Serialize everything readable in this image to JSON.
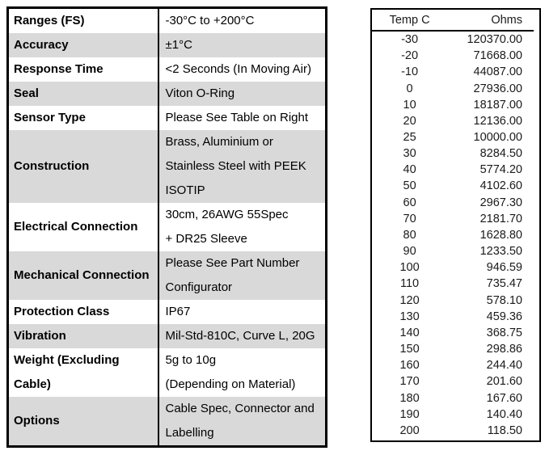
{
  "spec_table": {
    "rows": [
      {
        "label": "Ranges (FS)",
        "value": "-30°C to +200°C",
        "shaded": false
      },
      {
        "label": "Accuracy",
        "value": "±1°C",
        "shaded": true
      },
      {
        "label": "Response Time",
        "value": "<2 Seconds (In Moving Air)",
        "shaded": false
      },
      {
        "label": "Seal",
        "value": "Viton O-Ring",
        "shaded": true
      },
      {
        "label": "Sensor Type",
        "value": "Please See Table on Right",
        "shaded": false
      },
      {
        "label": "Construction",
        "value": "Brass, Aluminium or\nStainless Steel with PEEK\nISOTIP",
        "shaded": true
      },
      {
        "label": "Electrical Connection",
        "value": "30cm, 26AWG 55Spec\n+ DR25 Sleeve",
        "shaded": false
      },
      {
        "label": "Mechanical Connection",
        "value": "Please See Part Number\nConfigurator",
        "shaded": true
      },
      {
        "label": "Protection Class",
        "value": "IP67",
        "shaded": false
      },
      {
        "label": "Vibration",
        "value": "Mil-Std-810C, Curve L, 20G",
        "shaded": true
      },
      {
        "label": "Weight (Excluding Cable)",
        "value": "5g to 10g\n(Depending on Material)",
        "shaded": false
      },
      {
        "label": "Options",
        "value": "Cable Spec, Connector and\nLabelling",
        "shaded": true
      }
    ]
  },
  "resistance_table": {
    "headers": {
      "temp": "Temp C",
      "ohms": "Ohms"
    },
    "rows": [
      {
        "temp": "-30",
        "ohms": "120370.00"
      },
      {
        "temp": "-20",
        "ohms": "71668.00"
      },
      {
        "temp": "-10",
        "ohms": "44087.00"
      },
      {
        "temp": "0",
        "ohms": "27936.00"
      },
      {
        "temp": "10",
        "ohms": "18187.00"
      },
      {
        "temp": "20",
        "ohms": "12136.00"
      },
      {
        "temp": "25",
        "ohms": "10000.00"
      },
      {
        "temp": "30",
        "ohms": "8284.50"
      },
      {
        "temp": "40",
        "ohms": "5774.20"
      },
      {
        "temp": "50",
        "ohms": "4102.60"
      },
      {
        "temp": "60",
        "ohms": "2967.30"
      },
      {
        "temp": "70",
        "ohms": "2181.70"
      },
      {
        "temp": "80",
        "ohms": "1628.80"
      },
      {
        "temp": "90",
        "ohms": "1233.50"
      },
      {
        "temp": "100",
        "ohms": "946.59"
      },
      {
        "temp": "110",
        "ohms": "735.47"
      },
      {
        "temp": "120",
        "ohms": "578.10"
      },
      {
        "temp": "130",
        "ohms": "459.36"
      },
      {
        "temp": "140",
        "ohms": "368.75"
      },
      {
        "temp": "150",
        "ohms": "298.86"
      },
      {
        "temp": "160",
        "ohms": "244.40"
      },
      {
        "temp": "170",
        "ohms": "201.60"
      },
      {
        "temp": "180",
        "ohms": "167.60"
      },
      {
        "temp": "190",
        "ohms": "140.40"
      },
      {
        "temp": "200",
        "ohms": "118.50"
      }
    ]
  }
}
